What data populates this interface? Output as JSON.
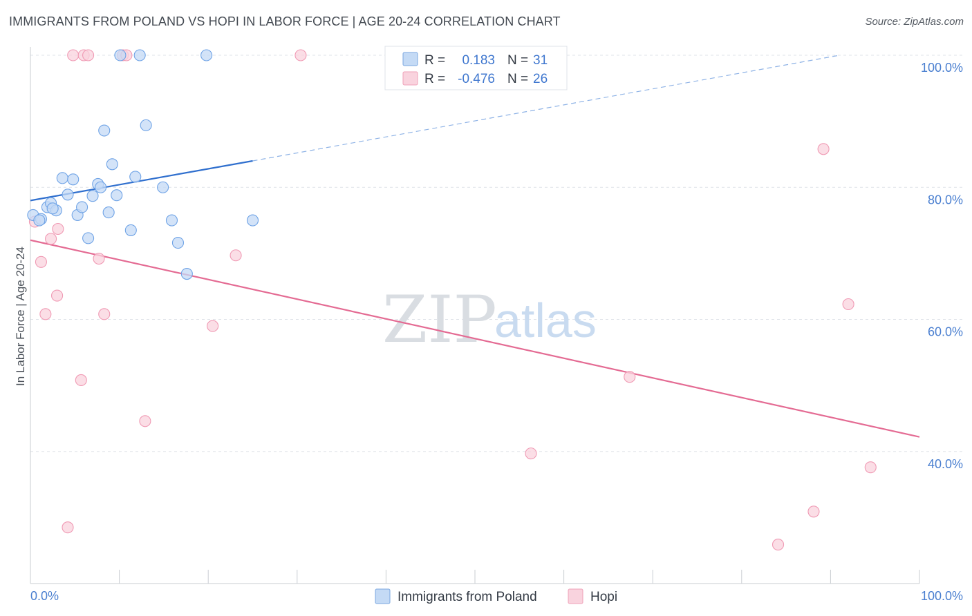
{
  "title": "IMMIGRANTS FROM POLAND VS HOPI IN LABOR FORCE | AGE 20-24 CORRELATION CHART",
  "source": "Source: ZipAtlas.com",
  "watermark": {
    "part1": "ZIP",
    "part2": "atlas"
  },
  "legend": {
    "r_label": "R =",
    "n_label": "N =",
    "rows": [
      {
        "r": "0.183",
        "n": "31",
        "color": "#a9c8ee"
      },
      {
        "r": "-0.476",
        "n": "26",
        "color": "#f5b8ca"
      }
    ]
  },
  "chart_data": {
    "type": "scatter",
    "title": "IMMIGRANTS FROM POLAND VS HOPI IN LABOR FORCE | AGE 20-24 CORRELATION CHART",
    "xlabel": "",
    "ylabel": "In Labor Force | Age 20-24",
    "xlim": [
      0,
      100
    ],
    "ylim": [
      20,
      100
    ],
    "x_tick_labels": [
      "0.0%",
      "100.0%"
    ],
    "y_tick_labels": [
      "40.0%",
      "60.0%",
      "80.0%",
      "100.0%"
    ],
    "y_ticks": [
      40,
      60,
      80,
      100
    ],
    "grid": true,
    "legend_position": "top-center",
    "series": [
      {
        "name": "Immigrants from Poland",
        "color": "#6fa3e6",
        "fill": "#c4daf5",
        "trend_color": "#2f6fce",
        "trend": {
          "x0": 0,
          "y0": 78.0,
          "x_solid_end": 25,
          "y_solid_end": 84.0,
          "x1": 91,
          "y1": 100.0
        },
        "points": [
          [
            0.3,
            75.8
          ],
          [
            1.2,
            75.2
          ],
          [
            1.9,
            77.0
          ],
          [
            2.3,
            77.6
          ],
          [
            2.9,
            76.5
          ],
          [
            3.6,
            81.4
          ],
          [
            4.2,
            78.9
          ],
          [
            4.8,
            81.2
          ],
          [
            5.3,
            75.8
          ],
          [
            5.8,
            77.0
          ],
          [
            6.5,
            72.3
          ],
          [
            7.0,
            78.7
          ],
          [
            7.6,
            80.5
          ],
          [
            7.9,
            80.0
          ],
          [
            8.3,
            88.6
          ],
          [
            8.8,
            76.2
          ],
          [
            9.2,
            83.5
          ],
          [
            9.7,
            78.8
          ],
          [
            10.1,
            100.0
          ],
          [
            11.3,
            73.5
          ],
          [
            11.8,
            81.6
          ],
          [
            12.3,
            100.0
          ],
          [
            13.0,
            89.4
          ],
          [
            14.9,
            80.0
          ],
          [
            15.9,
            75.0
          ],
          [
            16.6,
            71.6
          ],
          [
            17.6,
            66.9
          ],
          [
            19.8,
            100.0
          ],
          [
            25.0,
            75.0
          ],
          [
            1.0,
            75.0
          ],
          [
            2.5,
            76.8
          ]
        ]
      },
      {
        "name": "Hopi",
        "color": "#f09ab4",
        "fill": "#f9d3de",
        "trend_color": "#e46b93",
        "trend": {
          "x0": 0,
          "y0": 72.0,
          "x1": 100,
          "y1": 42.2
        },
        "points": [
          [
            0.5,
            74.8
          ],
          [
            1.2,
            68.7
          ],
          [
            1.7,
            60.8
          ],
          [
            2.3,
            72.2
          ],
          [
            3.0,
            63.6
          ],
          [
            3.1,
            73.7
          ],
          [
            4.2,
            28.5
          ],
          [
            4.8,
            100.0
          ],
          [
            5.7,
            50.8
          ],
          [
            6.0,
            100.0
          ],
          [
            6.5,
            100.0
          ],
          [
            7.7,
            69.2
          ],
          [
            8.3,
            60.8
          ],
          [
            10.4,
            100.0
          ],
          [
            10.8,
            100.0
          ],
          [
            12.9,
            44.6
          ],
          [
            20.5,
            59.0
          ],
          [
            23.1,
            69.7
          ],
          [
            30.4,
            100.0
          ],
          [
            67.4,
            51.3
          ],
          [
            56.3,
            39.7
          ],
          [
            84.1,
            25.9
          ],
          [
            88.1,
            30.9
          ],
          [
            89.2,
            85.8
          ],
          [
            92.0,
            62.3
          ],
          [
            94.5,
            37.6
          ]
        ]
      }
    ]
  }
}
